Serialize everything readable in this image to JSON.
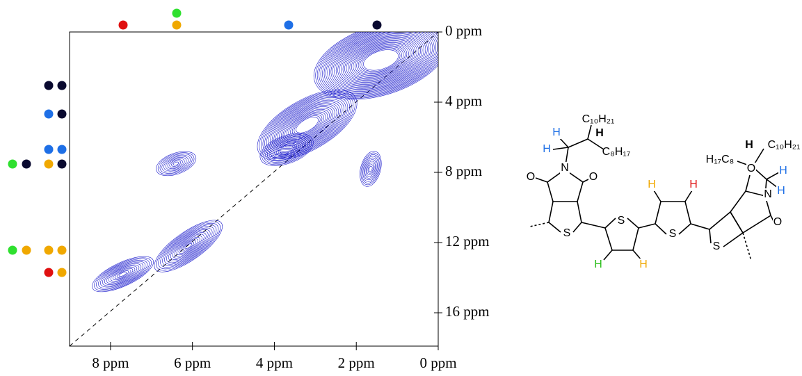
{
  "chart_data": {
    "type": "contour",
    "xlim": [
      9,
      0
    ],
    "ylim": [
      0,
      17.9
    ],
    "xticks": [
      {
        "value": 8,
        "label": "8 ppm"
      },
      {
        "value": 6,
        "label": "6 ppm"
      },
      {
        "value": 4,
        "label": "4 ppm"
      },
      {
        "value": 2,
        "label": "2 ppm"
      },
      {
        "value": 0,
        "label": "0 ppm"
      }
    ],
    "yticks": [
      {
        "value": 0,
        "label": "0 ppm"
      },
      {
        "value": 4,
        "label": "4 ppm"
      },
      {
        "value": 8,
        "label": "8 ppm"
      },
      {
        "value": 12,
        "label": "12 ppm"
      },
      {
        "value": 16,
        "label": "16 ppm"
      }
    ],
    "color": "#1a1acc",
    "peaks": {
      "x": [
        1.4,
        3.2,
        3.7,
        6.4,
        1.65,
        6.1,
        7.7
      ],
      "y": [
        1.6,
        5.3,
        6.7,
        7.5,
        7.8,
        12.2,
        13.8
      ]
    }
  },
  "structure": {
    "labels": [
      {
        "text": "C₁₀H₂₁",
        "color": "#000"
      },
      {
        "text": "H",
        "color": "#000"
      },
      {
        "text": "H",
        "color": "#1e6fe6"
      },
      {
        "text": "H",
        "color": "#1e6fe6"
      },
      {
        "text": "C₈H₁₇",
        "color": "#000"
      },
      {
        "text": "N",
        "color": "#000"
      },
      {
        "text": "O",
        "color": "#000"
      },
      {
        "text": "O",
        "color": "#000"
      },
      {
        "text": "S",
        "color": "#000"
      },
      {
        "text": "S",
        "color": "#000"
      },
      {
        "text": "S",
        "color": "#000"
      },
      {
        "text": "S",
        "color": "#000"
      },
      {
        "text": "H",
        "color": "#2fbf1f"
      },
      {
        "text": "H",
        "color": "#f0a800"
      },
      {
        "text": "H",
        "color": "#f0a800"
      },
      {
        "text": "H",
        "color": "#e01010"
      },
      {
        "text": "O",
        "color": "#000"
      },
      {
        "text": "O",
        "color": "#000"
      },
      {
        "text": "N",
        "color": "#000"
      },
      {
        "text": "H",
        "color": "#000"
      },
      {
        "text": "C₁₀H₂₁",
        "color": "#000"
      },
      {
        "text": "H₁₇C₈",
        "color": "#000"
      },
      {
        "text": "H",
        "color": "#1e6fe6"
      },
      {
        "text": "H",
        "color": "#1e6fe6"
      }
    ]
  }
}
